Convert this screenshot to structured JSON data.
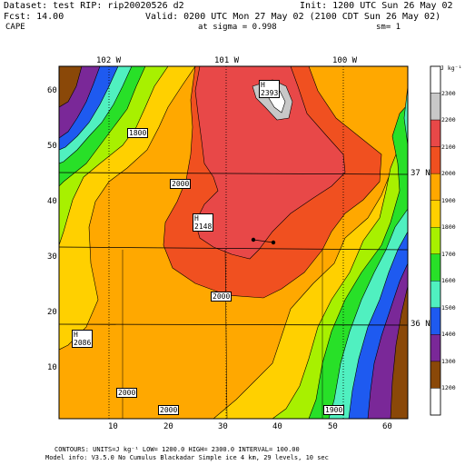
{
  "header": {
    "line1_left": "Dataset: test   RIP: rip20020526 d2",
    "line1_right": "Init: 1200 UTC Sun 26 May 02",
    "line2_left": "Fcst:    14.00",
    "line2_right": "Valid: 0200 UTC Mon 27 May 02 (2100 CDT Sun 26 May 02)",
    "line3_left": "CAPE",
    "line3_mid": "at sigma = 0.998",
    "line3_right": "sm= 1"
  },
  "map": {
    "lon_labels": [
      "102 W",
      "101 W",
      "100 W"
    ],
    "lat_labels": [
      "37 N",
      "36 N"
    ],
    "x_ticks": [
      "10",
      "20",
      "30",
      "40",
      "50",
      "60"
    ],
    "y_ticks": [
      "10",
      "20",
      "30",
      "40",
      "50",
      "60"
    ],
    "contour_labels": [
      "1800",
      "2000",
      "2000",
      "2000",
      "2000",
      "1900"
    ],
    "high_markers": [
      {
        "symbol": "H",
        "value": "2393"
      },
      {
        "symbol": "H",
        "value": "2148"
      },
      {
        "symbol": "H",
        "value": "2086"
      }
    ]
  },
  "colorbar": {
    "unit": "J kg⁻¹",
    "levels": [
      "2300",
      "2200",
      "2100",
      "2000",
      "1900",
      "1800",
      "1700",
      "1600",
      "1500",
      "1400",
      "1300",
      "1200"
    ],
    "colors": [
      "#ffffff",
      "#c8c8c8",
      "#e84848",
      "#f05020",
      "#ffa800",
      "#ffd000",
      "#a8f000",
      "#28e028",
      "#50f0c0",
      "#1e5af0",
      "#7a2898",
      "#8a4808"
    ]
  },
  "footer": {
    "line1": "CONTOURS:  UNITS=J kg⁻¹   LOW=   1200.0         HIGH=   2300.0        INTERVAL=     100.00",
    "line2": "Model info: V3.5.0 No Cumulus Blackadar  Simple ice    4 km,  29 levels,  10 sec"
  }
}
